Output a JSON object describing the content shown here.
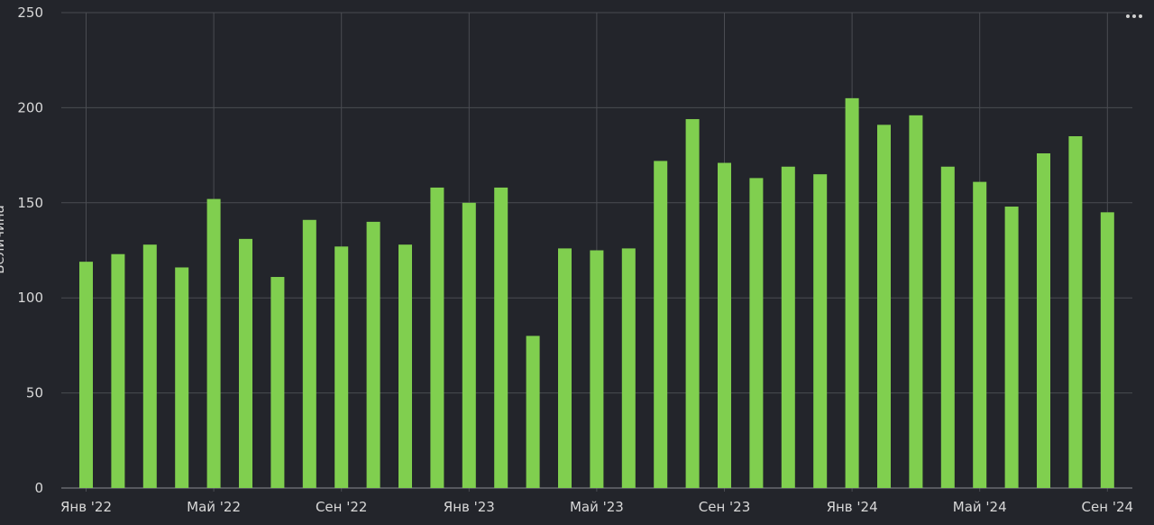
{
  "menu": {
    "icon": "more-horizontal-icon"
  },
  "colors": {
    "background": "#23252b",
    "bar": "#80cf4f",
    "grid": "#4a4c52",
    "text": "#d8d8d8"
  },
  "chart_data": {
    "type": "bar",
    "title": "",
    "xlabel": "",
    "ylabel": "Величина",
    "ylim": [
      0,
      250
    ],
    "yticks": [
      0,
      50,
      100,
      150,
      200,
      250
    ],
    "grid": true,
    "legend": "none",
    "categories": [
      "2022-01",
      "2022-02",
      "2022-03",
      "2022-04",
      "2022-05",
      "2022-06",
      "2022-07",
      "2022-08",
      "2022-09",
      "2022-10",
      "2022-11",
      "2022-12",
      "2023-01",
      "2023-02",
      "2023-03",
      "2023-04",
      "2023-05",
      "2023-06",
      "2023-07",
      "2023-08",
      "2023-09",
      "2023-10",
      "2023-11",
      "2023-12",
      "2024-01",
      "2024-02",
      "2024-03",
      "2024-04",
      "2024-05",
      "2024-06",
      "2024-07",
      "2024-08",
      "2024-09"
    ],
    "values": [
      119,
      123,
      128,
      116,
      152,
      131,
      111,
      141,
      127,
      140,
      128,
      158,
      150,
      158,
      80,
      126,
      125,
      126,
      172,
      194,
      171,
      163,
      169,
      165,
      205,
      191,
      196,
      169,
      161,
      148,
      176,
      185,
      145
    ],
    "x_tick_labels": [
      {
        "index": 0,
        "label": "Янв '22"
      },
      {
        "index": 4,
        "label": "Май '22"
      },
      {
        "index": 8,
        "label": "Сен '22"
      },
      {
        "index": 12,
        "label": "Янв '23"
      },
      {
        "index": 16,
        "label": "Май '23"
      },
      {
        "index": 20,
        "label": "Сен '23"
      },
      {
        "index": 24,
        "label": "Янв '24"
      },
      {
        "index": 28,
        "label": "Май '24"
      },
      {
        "index": 32,
        "label": "Сен '24"
      }
    ]
  }
}
